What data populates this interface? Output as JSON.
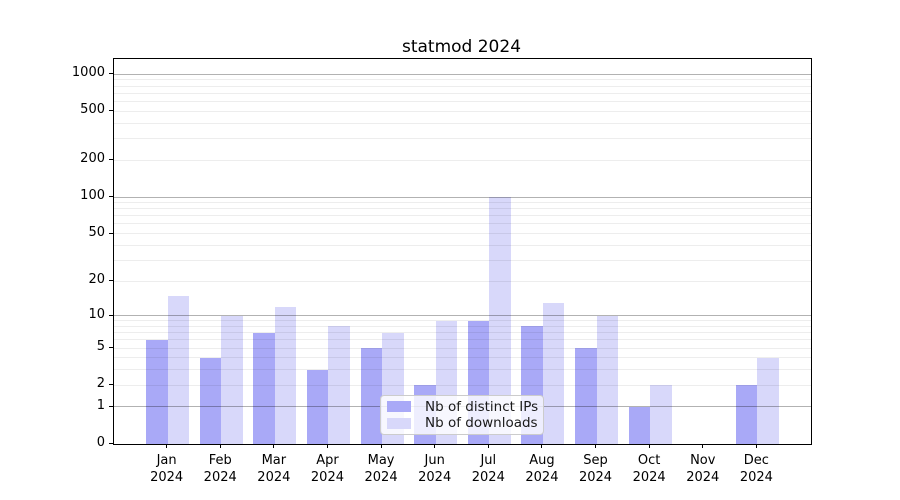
{
  "title": "statmod 2024",
  "chart_data": {
    "type": "bar",
    "title": "statmod 2024",
    "scale": "log1p",
    "grid": true,
    "legend_position": "lower center inside plot",
    "categories": [
      "Jan 2024",
      "Feb 2024",
      "Mar 2024",
      "Apr 2024",
      "May 2024",
      "Jun 2024",
      "Jul 2024",
      "Aug 2024",
      "Sep 2024",
      "Oct 2024",
      "Nov 2024",
      "Dec 2024"
    ],
    "series": [
      {
        "key": "distinct-ips",
        "name": "Nb of distinct IPs",
        "color": "#a9a9f7",
        "values": [
          6,
          4,
          7,
          3,
          5,
          2,
          9,
          8,
          5,
          1,
          0,
          2
        ]
      },
      {
        "key": "downloads",
        "name": "Nb of downloads",
        "color": "#d8d8fa",
        "values": [
          15,
          10,
          12,
          8,
          7,
          9,
          100,
          13,
          10,
          2,
          0,
          4
        ]
      }
    ],
    "yticks": [
      0,
      1,
      2,
      5,
      10,
      20,
      50,
      100,
      200,
      500,
      1000
    ],
    "ylim": [
      0,
      1330
    ],
    "xlabel": "",
    "ylabel": ""
  },
  "colors": {
    "bar_distinct_ips": "#a9a9f7",
    "bar_downloads": "#d8d8fa",
    "grid_major": "#b3b3b3",
    "grid_minor": "#ededed",
    "axis": "#000000",
    "background": "#ffffff"
  }
}
